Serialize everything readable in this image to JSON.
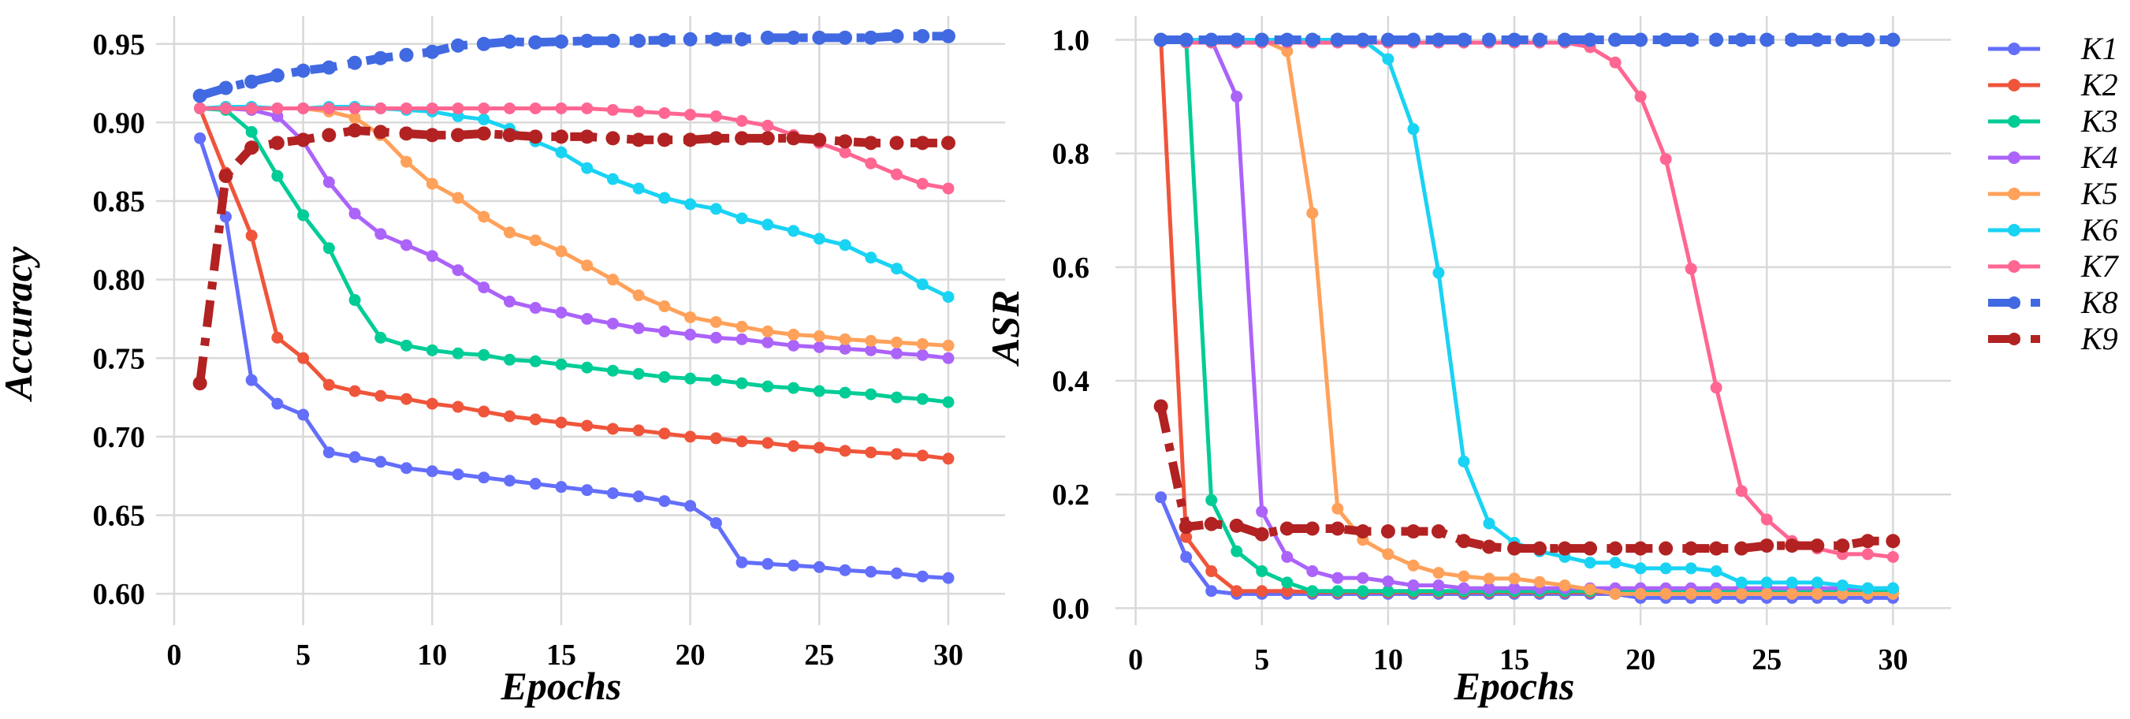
{
  "chart_data": [
    {
      "type": "line",
      "xlabel": "Epochs",
      "ylabel": "Accuracy",
      "xlim": [
        -0.7,
        32.2
      ],
      "ylim": [
        0.58,
        0.978
      ],
      "grid": true,
      "x_ticks": [
        "0",
        "5",
        "10",
        "15",
        "20",
        "25",
        "30"
      ],
      "x_tick_values": [
        0,
        5,
        10,
        15,
        20,
        25,
        30
      ],
      "y_ticks": [
        "0.60",
        "0.65",
        "0.70",
        "0.75",
        "0.80",
        "0.85",
        "0.90",
        "0.95"
      ],
      "y_tick_values": [
        0.6,
        0.65,
        0.7,
        0.75,
        0.8,
        0.85,
        0.9,
        0.95
      ],
      "x": [
        1,
        2,
        3,
        4,
        5,
        6,
        7,
        8,
        9,
        10,
        11,
        12,
        13,
        14,
        15,
        16,
        17,
        18,
        19,
        20,
        21,
        22,
        23,
        24,
        25,
        26,
        27,
        28,
        29,
        30
      ],
      "series": [
        {
          "name": "K1",
          "values": [
            0.89,
            0.84,
            0.736,
            0.721,
            0.714,
            0.69,
            0.687,
            0.684,
            0.68,
            0.678,
            0.676,
            0.674,
            0.672,
            0.67,
            0.668,
            0.666,
            0.664,
            0.662,
            0.659,
            0.656,
            0.645,
            0.62,
            0.619,
            0.618,
            0.617,
            0.615,
            0.614,
            0.613,
            0.611,
            0.61
          ]
        },
        {
          "name": "K2",
          "values": [
            0.909,
            0.868,
            0.828,
            0.763,
            0.75,
            0.733,
            0.729,
            0.726,
            0.724,
            0.721,
            0.719,
            0.716,
            0.713,
            0.711,
            0.709,
            0.707,
            0.705,
            0.704,
            0.702,
            0.7,
            0.699,
            0.697,
            0.696,
            0.694,
            0.693,
            0.691,
            0.69,
            0.689,
            0.688,
            0.686
          ]
        },
        {
          "name": "K3",
          "values": [
            0.909,
            0.908,
            0.894,
            0.866,
            0.841,
            0.82,
            0.787,
            0.763,
            0.758,
            0.755,
            0.753,
            0.752,
            0.749,
            0.748,
            0.746,
            0.744,
            0.742,
            0.74,
            0.738,
            0.737,
            0.736,
            0.734,
            0.732,
            0.731,
            0.729,
            0.728,
            0.727,
            0.725,
            0.724,
            0.722
          ]
        },
        {
          "name": "K4",
          "values": [
            0.909,
            0.909,
            0.908,
            0.904,
            0.888,
            0.862,
            0.842,
            0.829,
            0.822,
            0.815,
            0.806,
            0.795,
            0.786,
            0.782,
            0.779,
            0.775,
            0.772,
            0.769,
            0.767,
            0.765,
            0.763,
            0.762,
            0.76,
            0.758,
            0.757,
            0.756,
            0.755,
            0.753,
            0.752,
            0.75
          ]
        },
        {
          "name": "K5",
          "values": [
            0.909,
            0.909,
            0.909,
            0.909,
            0.909,
            0.907,
            0.903,
            0.892,
            0.875,
            0.861,
            0.852,
            0.84,
            0.83,
            0.825,
            0.818,
            0.809,
            0.8,
            0.79,
            0.783,
            0.776,
            0.773,
            0.77,
            0.767,
            0.765,
            0.764,
            0.762,
            0.761,
            0.76,
            0.759,
            0.758
          ]
        },
        {
          "name": "K6",
          "values": [
            0.909,
            0.91,
            0.91,
            0.909,
            0.909,
            0.91,
            0.91,
            0.909,
            0.908,
            0.907,
            0.904,
            0.902,
            0.896,
            0.888,
            0.881,
            0.871,
            0.864,
            0.858,
            0.852,
            0.848,
            0.845,
            0.839,
            0.835,
            0.831,
            0.826,
            0.822,
            0.814,
            0.807,
            0.797,
            0.789
          ]
        },
        {
          "name": "K7",
          "values": [
            0.909,
            0.909,
            0.909,
            0.909,
            0.909,
            0.909,
            0.909,
            0.909,
            0.909,
            0.909,
            0.909,
            0.909,
            0.909,
            0.909,
            0.909,
            0.909,
            0.908,
            0.907,
            0.906,
            0.905,
            0.904,
            0.901,
            0.898,
            0.892,
            0.887,
            0.881,
            0.874,
            0.867,
            0.861,
            0.858
          ]
        },
        {
          "name": "K8",
          "values": [
            0.917,
            0.922,
            0.926,
            0.93,
            0.933,
            0.935,
            0.938,
            0.941,
            0.943,
            0.945,
            0.949,
            0.95,
            0.9515,
            0.951,
            0.9515,
            0.952,
            0.952,
            0.952,
            0.9525,
            0.953,
            0.953,
            0.953,
            0.954,
            0.954,
            0.954,
            0.954,
            0.954,
            0.955,
            0.955,
            0.955
          ]
        },
        {
          "name": "K9",
          "values": [
            0.734,
            0.866,
            0.884,
            0.887,
            0.889,
            0.892,
            0.895,
            0.894,
            0.893,
            0.892,
            0.892,
            0.893,
            0.892,
            0.891,
            0.891,
            0.891,
            0.89,
            0.889,
            0.889,
            0.889,
            0.89,
            0.89,
            0.89,
            0.89,
            0.889,
            0.888,
            0.887,
            0.887,
            0.887,
            0.887
          ]
        }
      ]
    },
    {
      "type": "line",
      "xlabel": "Epochs",
      "ylabel": "ASR",
      "xlim": [
        -0.8,
        32.3
      ],
      "ylim": [
        -0.03,
        1.07
      ],
      "grid": true,
      "legend_position": "right",
      "x_ticks": [
        "0",
        "5",
        "10",
        "15",
        "20",
        "25",
        "30"
      ],
      "x_tick_values": [
        0,
        5,
        10,
        15,
        20,
        25,
        30
      ],
      "y_ticks": [
        "0.0",
        "0.2",
        "0.4",
        "0.6",
        "0.8",
        "1.0"
      ],
      "y_tick_values": [
        0,
        0.2,
        0.4,
        0.6,
        0.8,
        1.0
      ],
      "x": [
        1,
        2,
        3,
        4,
        5,
        6,
        7,
        8,
        9,
        10,
        11,
        12,
        13,
        14,
        15,
        16,
        17,
        18,
        19,
        20,
        21,
        22,
        23,
        24,
        25,
        26,
        27,
        28,
        29,
        30
      ],
      "series": [
        {
          "name": "K1",
          "values": [
            0.195,
            0.09,
            0.03,
            0.025,
            0.025,
            0.025,
            0.025,
            0.025,
            0.025,
            0.025,
            0.025,
            0.025,
            0.025,
            0.025,
            0.025,
            0.025,
            0.025,
            0.025,
            0.025,
            0.018,
            0.018,
            0.018,
            0.018,
            0.018,
            0.018,
            0.018,
            0.018,
            0.018,
            0.018,
            0.018
          ]
        },
        {
          "name": "K2",
          "values": [
            1.0,
            0.125,
            0.065,
            0.03,
            0.03,
            0.03,
            0.028,
            0.028,
            0.028,
            0.028,
            0.028,
            0.028,
            0.028,
            0.028,
            0.028,
            0.028,
            0.028,
            0.028,
            0.028,
            0.028,
            0.028,
            0.028,
            0.028,
            0.028,
            0.028,
            0.028,
            0.028,
            0.028,
            0.028,
            0.028
          ]
        },
        {
          "name": "K3",
          "values": [
            1.0,
            1.0,
            0.19,
            0.1,
            0.065,
            0.045,
            0.03,
            0.03,
            0.03,
            0.03,
            0.03,
            0.03,
            0.03,
            0.03,
            0.03,
            0.03,
            0.03,
            0.03,
            0.03,
            0.03,
            0.03,
            0.03,
            0.03,
            0.03,
            0.03,
            0.03,
            0.03,
            0.03,
            0.03,
            0.03
          ]
        },
        {
          "name": "K4",
          "values": [
            1.0,
            1.0,
            1.0,
            0.9,
            0.17,
            0.09,
            0.065,
            0.053,
            0.053,
            0.047,
            0.04,
            0.04,
            0.035,
            0.035,
            0.035,
            0.035,
            0.035,
            0.035,
            0.035,
            0.035,
            0.035,
            0.035,
            0.035,
            0.035,
            0.035,
            0.035,
            0.035,
            0.035,
            0.035,
            0.035
          ]
        },
        {
          "name": "K5",
          "values": [
            1.0,
            1.0,
            1.0,
            1.0,
            1.0,
            0.98,
            0.695,
            0.175,
            0.12,
            0.095,
            0.075,
            0.062,
            0.056,
            0.052,
            0.052,
            0.046,
            0.04,
            0.033,
            0.025,
            0.025,
            0.025,
            0.025,
            0.025,
            0.025,
            0.025,
            0.025,
            0.025,
            0.025,
            0.025,
            0.025
          ]
        },
        {
          "name": "K6",
          "values": [
            1.0,
            1.0,
            1.0,
            1.0,
            1.0,
            1.0,
            1.0,
            1.0,
            1.0,
            0.966,
            0.843,
            0.59,
            0.258,
            0.149,
            0.115,
            0.1,
            0.09,
            0.08,
            0.08,
            0.07,
            0.07,
            0.07,
            0.065,
            0.045,
            0.045,
            0.045,
            0.045,
            0.04,
            0.035,
            0.035
          ]
        },
        {
          "name": "K7",
          "values": [
            1.0,
            0.995,
            0.995,
            0.995,
            0.995,
            0.995,
            0.995,
            0.995,
            0.995,
            0.995,
            0.995,
            0.995,
            0.995,
            0.995,
            0.995,
            0.995,
            0.995,
            0.987,
            0.96,
            0.9,
            0.79,
            0.597,
            0.388,
            0.206,
            0.156,
            0.118,
            0.105,
            0.095,
            0.095,
            0.09
          ]
        },
        {
          "name": "K8",
          "values": [
            1.0,
            1.0,
            1.0,
            1.0,
            1.0,
            1.0,
            1.0,
            1.0,
            1.0,
            1.0,
            1.0,
            1.0,
            1.0,
            1.0,
            1.0,
            1.0,
            1.0,
            1.0,
            1.0,
            1.0,
            1.0,
            1.0,
            1.0,
            1.0,
            1.0,
            1.0,
            1.0,
            1.0,
            1.0,
            1.0
          ]
        },
        {
          "name": "K9",
          "values": [
            0.355,
            0.143,
            0.148,
            0.145,
            0.13,
            0.14,
            0.14,
            0.14,
            0.135,
            0.135,
            0.135,
            0.135,
            0.118,
            0.108,
            0.105,
            0.105,
            0.105,
            0.105,
            0.105,
            0.105,
            0.105,
            0.105,
            0.105,
            0.105,
            0.11,
            0.11,
            0.11,
            0.11,
            0.118,
            0.118
          ]
        }
      ]
    }
  ],
  "legend": {
    "items": [
      {
        "label": "K1",
        "color": "#636efa",
        "dashed": false
      },
      {
        "label": "K2",
        "color": "#ef553b",
        "dashed": false
      },
      {
        "label": "K3",
        "color": "#00cc96",
        "dashed": false
      },
      {
        "label": "K4",
        "color": "#ab63fa",
        "dashed": false
      },
      {
        "label": "K5",
        "color": "#ffa15a",
        "dashed": false
      },
      {
        "label": "K6",
        "color": "#19d3f3",
        "dashed": false
      },
      {
        "label": "K7",
        "color": "#ff6692",
        "dashed": false
      },
      {
        "label": "K8",
        "color": "#4169e1",
        "dashed": true
      },
      {
        "label": "K9",
        "color": "#b22222",
        "dashed": true
      }
    ]
  }
}
